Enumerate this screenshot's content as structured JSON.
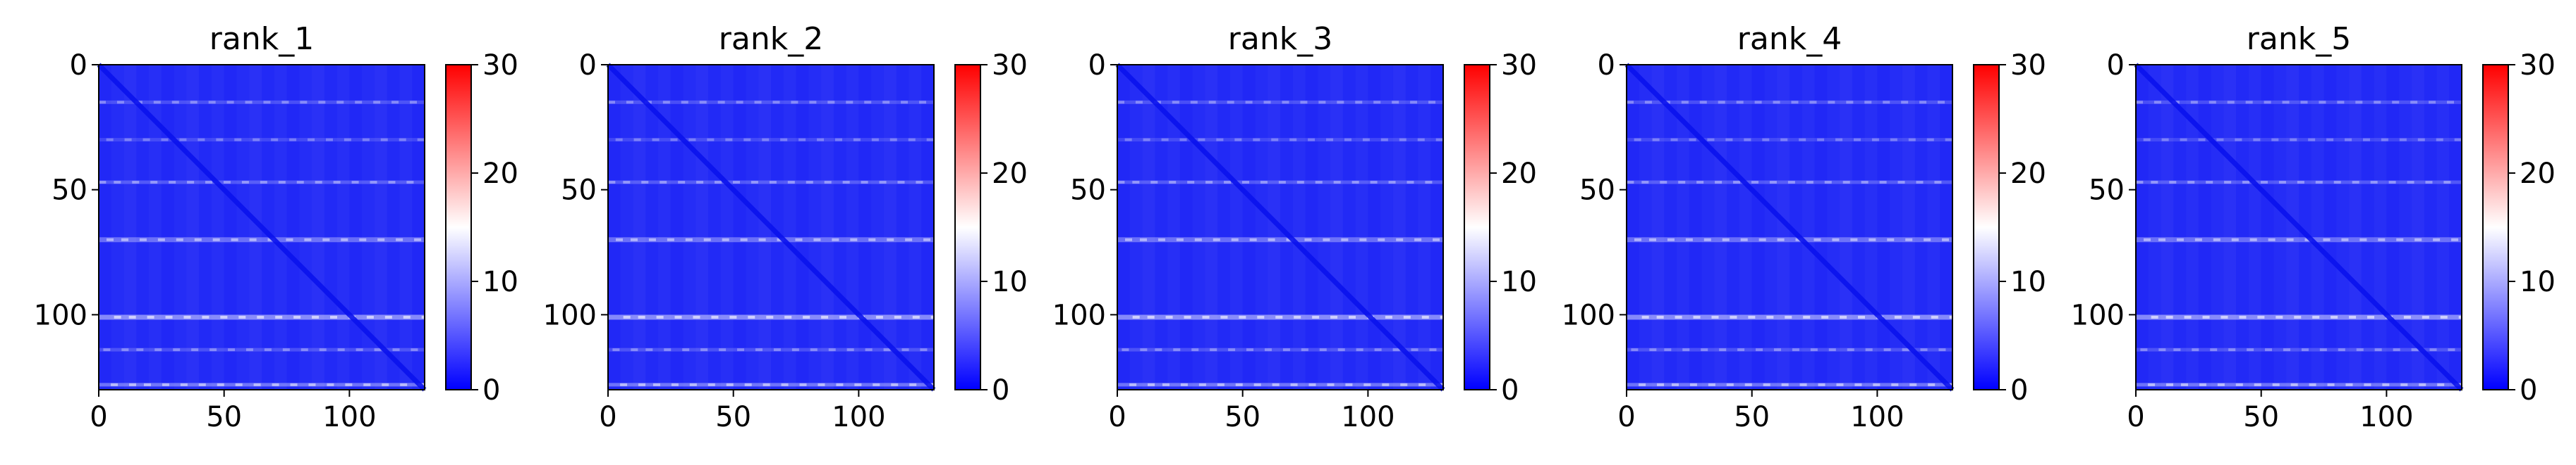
{
  "chart_data": [
    {
      "type": "heatmap",
      "title": "rank_1",
      "x_ticks": [
        0,
        50,
        100
      ],
      "y_ticks": [
        0,
        50,
        100
      ],
      "xlim": [
        0,
        130
      ],
      "ylim": [
        130,
        0
      ],
      "colorbar": {
        "ticks": [
          0,
          10,
          20,
          30
        ],
        "range": [
          0,
          30
        ],
        "colormap": "bwr"
      },
      "diagonal": true,
      "bright_rows": [
        15,
        30,
        47,
        70,
        101,
        114,
        128
      ],
      "grid": false
    },
    {
      "type": "heatmap",
      "title": "rank_2",
      "x_ticks": [
        0,
        50,
        100
      ],
      "y_ticks": [
        0,
        50,
        100
      ],
      "xlim": [
        0,
        130
      ],
      "ylim": [
        130,
        0
      ],
      "colorbar": {
        "ticks": [
          0,
          10,
          20,
          30
        ],
        "range": [
          0,
          30
        ],
        "colormap": "bwr"
      },
      "diagonal": true,
      "bright_rows": [
        15,
        30,
        47,
        70,
        101,
        114,
        128
      ],
      "grid": false
    },
    {
      "type": "heatmap",
      "title": "rank_3",
      "x_ticks": [
        0,
        50,
        100
      ],
      "y_ticks": [
        0,
        50,
        100
      ],
      "xlim": [
        0,
        130
      ],
      "ylim": [
        130,
        0
      ],
      "colorbar": {
        "ticks": [
          0,
          10,
          20,
          30
        ],
        "range": [
          0,
          30
        ],
        "colormap": "bwr"
      },
      "diagonal": true,
      "bright_rows": [
        15,
        30,
        47,
        70,
        101,
        114,
        128
      ],
      "grid": false
    },
    {
      "type": "heatmap",
      "title": "rank_4",
      "x_ticks": [
        0,
        50,
        100
      ],
      "y_ticks": [
        0,
        50,
        100
      ],
      "xlim": [
        0,
        130
      ],
      "ylim": [
        130,
        0
      ],
      "colorbar": {
        "ticks": [
          0,
          10,
          20,
          30
        ],
        "range": [
          0,
          30
        ],
        "colormap": "bwr"
      },
      "diagonal": true,
      "bright_rows": [
        15,
        30,
        47,
        70,
        101,
        114,
        128
      ],
      "grid": false
    },
    {
      "type": "heatmap",
      "title": "rank_5",
      "x_ticks": [
        0,
        50,
        100
      ],
      "y_ticks": [
        0,
        50,
        100
      ],
      "xlim": [
        0,
        130
      ],
      "ylim": [
        130,
        0
      ],
      "colorbar": {
        "ticks": [
          0,
          10,
          20,
          30
        ],
        "range": [
          0,
          30
        ],
        "colormap": "bwr"
      },
      "diagonal": true,
      "bright_rows": [
        15,
        30,
        47,
        70,
        101,
        114,
        128
      ],
      "grid": false
    }
  ],
  "colors": {
    "low": "#0000ff",
    "mid": "#ffffff",
    "high": "#ff0000",
    "axis": "#000000"
  }
}
